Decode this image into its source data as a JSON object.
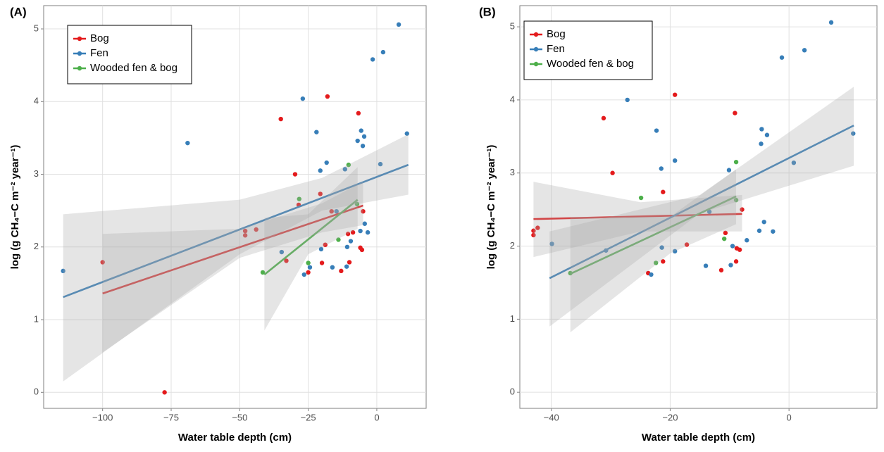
{
  "chart_data": [
    {
      "type": "scatter",
      "panel_label": "(A)",
      "xlabel": "Water table depth (cm)",
      "ylabel": "log (g CH₄−C m⁻² year⁻¹)",
      "xlim": [
        -121.5,
        18
      ],
      "ylim": [
        -0.22,
        5.32
      ],
      "xticks": [
        {
          "value": -100,
          "label": "−100"
        },
        {
          "value": -75,
          "label": "−75"
        },
        {
          "value": -50,
          "label": "−50"
        },
        {
          "value": -25,
          "label": "−25"
        },
        0
      ],
      "yticks": [
        0,
        1,
        2,
        3,
        4,
        5
      ],
      "grid": true,
      "legend": "top-left",
      "series": [
        {
          "name": "Bog",
          "color": "#e41a1c",
          "x": [
            -100,
            -77.4,
            -48,
            -48,
            -44,
            -35,
            -29.8,
            -18,
            -6.7,
            -20.6,
            -20,
            -13,
            -10,
            -25,
            -5.4,
            -6,
            -5,
            -8.7,
            -10.5,
            -18.8,
            -16.5,
            -33,
            -28.5
          ],
          "values": [
            1.79,
            0.0,
            2.22,
            2.16,
            2.24,
            3.76,
            3.0,
            4.07,
            3.84,
            2.73,
            1.78,
            1.67,
            1.79,
            1.65,
            1.96,
            1.99,
            2.49,
            2.2,
            2.18,
            2.03,
            2.49,
            1.81,
            2.58
          ],
          "fit_x": [
            -100,
            -5
          ],
          "fit_values": [
            1.36,
            2.57
          ],
          "band_x": [
            -100,
            -50,
            -20,
            -5
          ],
          "band_lower": [
            0.55,
            1.85,
            2.2,
            2.3
          ],
          "band_upper": [
            2.18,
            2.25,
            2.6,
            2.9
          ]
        },
        {
          "name": "Fen",
          "color": "#377eb8",
          "x": [
            -114.4,
            -69,
            -27,
            8,
            2.3,
            -1.5,
            11,
            -22,
            -18.3,
            -20.6,
            -5.7,
            -4.6,
            -5.1,
            -7,
            1.3,
            -11.6,
            -26.5,
            -16.2,
            -11,
            -10.8,
            -20.3,
            -4.4,
            -6,
            -3.3,
            -9.5,
            -14.7,
            -34.7,
            -24.4
          ],
          "values": [
            1.67,
            3.43,
            4.04,
            5.06,
            4.68,
            4.58,
            3.56,
            3.58,
            3.16,
            3.05,
            3.6,
            3.52,
            3.39,
            3.46,
            3.14,
            3.07,
            1.62,
            1.72,
            1.73,
            2.0,
            1.97,
            2.32,
            2.22,
            2.2,
            2.08,
            2.49,
            1.93,
            1.72
          ],
          "fit_x": [
            -114.4,
            11.5
          ],
          "fit_values": [
            1.31,
            3.13
          ],
          "band_x": [
            -114.4,
            -50,
            -20,
            11.5
          ],
          "band_lower": [
            0.15,
            1.9,
            2.5,
            2.72
          ],
          "band_upper": [
            2.45,
            2.65,
            2.95,
            3.55
          ]
        },
        {
          "name": "Wooded fen & bog",
          "color": "#4daf4a",
          "x": [
            -41.6,
            -10.3,
            -28.3,
            -25,
            -14,
            -7.2
          ],
          "values": [
            1.65,
            3.13,
            2.66,
            1.78,
            2.1,
            2.59
          ],
          "fit_x": [
            -41,
            -7
          ],
          "fit_values": [
            1.62,
            2.65
          ],
          "band_x": [
            -41,
            -25,
            -7
          ],
          "band_lower": [
            0.85,
            1.9,
            2.25
          ],
          "band_upper": [
            2.4,
            2.45,
            3.1
          ]
        }
      ]
    },
    {
      "type": "scatter",
      "panel_label": "(B)",
      "xlabel": "Water table depth (cm)",
      "ylabel": "log (g CH₄−C m⁻² year⁻¹)",
      "xlim": [
        -45.3,
        14.8
      ],
      "ylim": [
        -0.22,
        5.29
      ],
      "xticks": [
        {
          "value": -40,
          "label": "−40"
        },
        {
          "value": -20,
          "label": "−20"
        },
        0
      ],
      "yticks": [
        0,
        1,
        2,
        3,
        4,
        5
      ],
      "grid": true,
      "legend": "top-left",
      "series": [
        {
          "name": "Bog",
          "color": "#e41a1c",
          "x": [
            -43,
            -43,
            -42.3,
            -31.2,
            -29.7,
            -19.2,
            -9.1,
            -21.2,
            -21.2,
            -11.4,
            -8.9,
            -8.3,
            -8.8,
            -7.9,
            -10.7,
            -17.2,
            -23.7
          ],
          "values": [
            2.21,
            2.15,
            2.25,
            3.75,
            3.0,
            4.07,
            3.82,
            2.74,
            1.79,
            1.67,
            1.79,
            1.95,
            1.97,
            2.5,
            2.18,
            2.02,
            1.63
          ],
          "fit_x": [
            -43,
            -7.9
          ],
          "fit_values": [
            2.37,
            2.44
          ],
          "band_x": [
            -43,
            -25,
            -7.9
          ],
          "band_lower": [
            1.85,
            2.2,
            2.2
          ],
          "band_upper": [
            2.88,
            2.6,
            2.7
          ]
        },
        {
          "name": "Fen",
          "color": "#377eb8",
          "x": [
            -39.9,
            -27.2,
            7.1,
            2.6,
            -1.2,
            10.8,
            -22.3,
            -19.2,
            -21.5,
            -4.6,
            -3.7,
            -4.7,
            0.8,
            -10.1,
            -23.2,
            -14,
            -9.8,
            -9.5,
            -21.4,
            -4.2,
            -5,
            -2.7,
            -7.1,
            -13.4,
            -30.8,
            -19.2
          ],
          "values": [
            2.03,
            4.0,
            5.06,
            4.68,
            4.58,
            3.54,
            3.58,
            3.17,
            3.06,
            3.6,
            3.52,
            3.4,
            3.14,
            3.04,
            1.61,
            1.73,
            1.74,
            2.0,
            1.98,
            2.33,
            2.21,
            2.2,
            2.08,
            2.47,
            1.94,
            1.93
          ],
          "fit_x": [
            -40.3,
            10.9
          ],
          "fit_values": [
            1.56,
            3.65
          ],
          "band_x": [
            -40.3,
            -15,
            10.9
          ],
          "band_lower": [
            0.9,
            2.45,
            3.1
          ],
          "band_upper": [
            2.2,
            2.7,
            4.18
          ]
        },
        {
          "name": "Wooded fen & bog",
          "color": "#4daf4a",
          "x": [
            -36.8,
            -8.9,
            -24.9,
            -22.4,
            -10.9,
            -8.9
          ],
          "values": [
            1.63,
            3.15,
            2.66,
            1.77,
            2.1,
            2.63
          ],
          "fit_x": [
            -36.8,
            -8.9
          ],
          "fit_values": [
            1.62,
            2.68
          ],
          "band_x": [
            -36.8,
            -20,
            -8.9
          ],
          "band_lower": [
            0.82,
            1.9,
            2.3
          ],
          "band_upper": [
            2.4,
            2.4,
            3.05
          ]
        }
      ]
    }
  ]
}
